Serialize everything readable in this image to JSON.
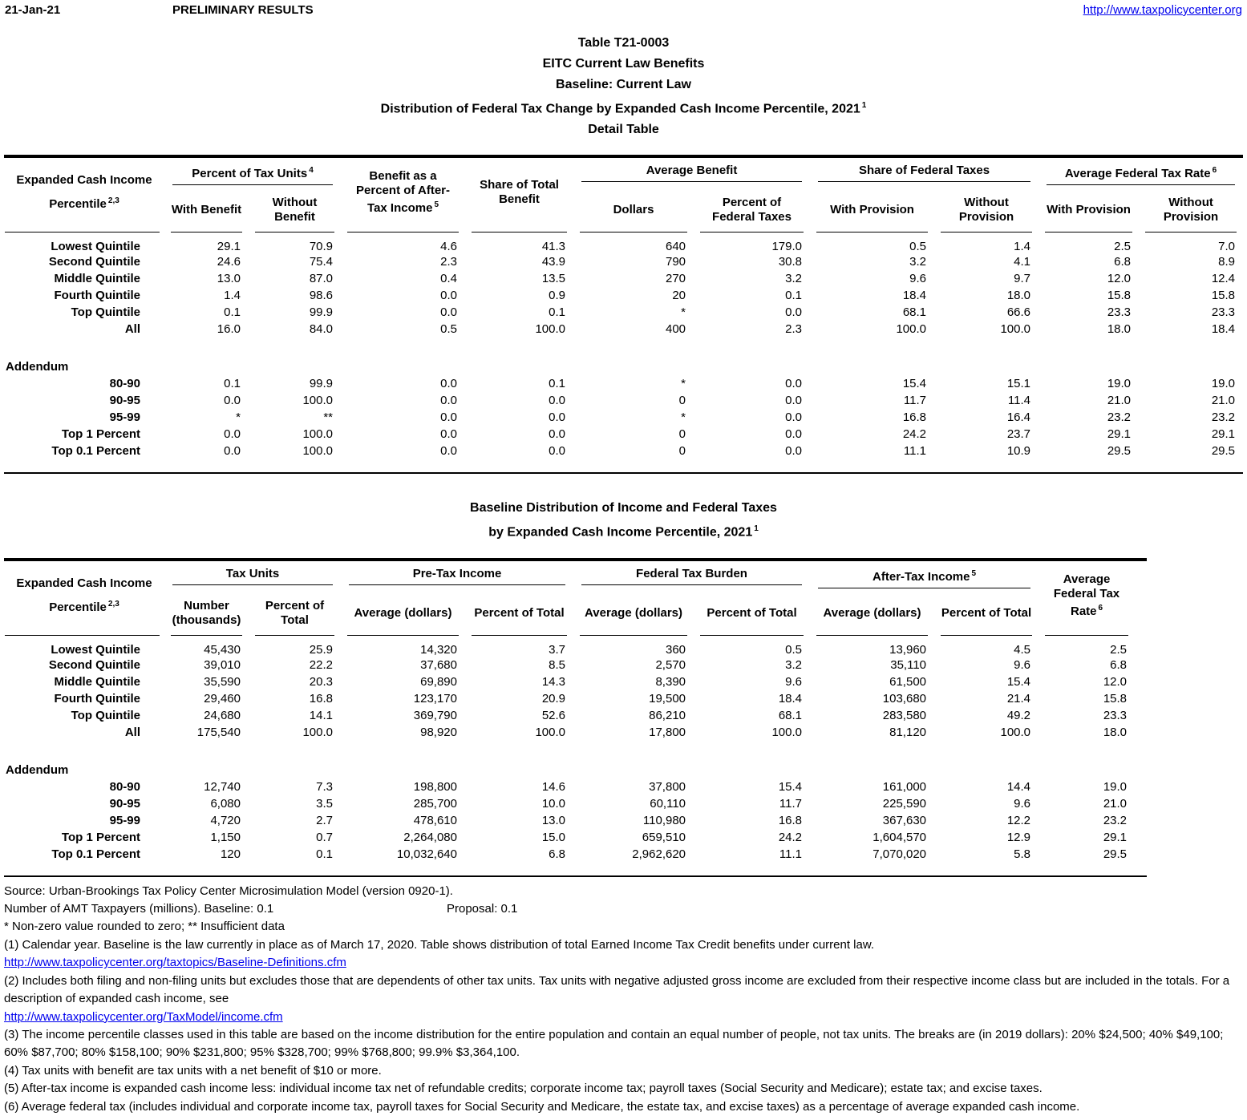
{
  "page_header": {
    "date": "21-Jan-21",
    "status": "PRELIMINARY RESULTS",
    "url": "http://www.taxpolicycenter.org"
  },
  "titles": {
    "line1": "Table T21-0003",
    "line2": "EITC Current Law Benefits",
    "line3": "Baseline: Current Law",
    "line4": "Distribution of Federal Tax Change by Expanded Cash Income Percentile, 2021",
    "line4_sup": "1",
    "line5": "Detail Table"
  },
  "table1": {
    "stub": {
      "line1": "Expanded Cash Income",
      "line2": "Percentile",
      "sup": "2,3"
    },
    "groups": {
      "pct_tax_units": {
        "label": "Percent of Tax Units",
        "sup": "4"
      },
      "benefit_pct_ati": {
        "label": "Benefit as a Percent of After-Tax Income",
        "sup": "5"
      },
      "share_total_benefit": {
        "label": "Share of Total Benefit"
      },
      "average_benefit": {
        "label": "Average Benefit"
      },
      "share_federal_taxes": {
        "label": "Share of Federal Taxes"
      },
      "avg_federal_tax_rate": {
        "label": "Average Federal Tax Rate",
        "sup": "6"
      }
    },
    "subheaders": {
      "with_benefit": "With Benefit",
      "without_benefit": "Without Benefit",
      "dollars": "Dollars",
      "pct_federal_taxes": "Percent of Federal Taxes",
      "with_provision": "With Provision",
      "without_provision": "Without Provision"
    },
    "rows": [
      {
        "label": "Lowest Quintile",
        "values": [
          "29.1",
          "70.9",
          "4.6",
          "41.3",
          "640",
          "179.0",
          "0.5",
          "1.4",
          "2.5",
          "7.0"
        ]
      },
      {
        "label": "Second Quintile",
        "values": [
          "24.6",
          "75.4",
          "2.3",
          "43.9",
          "790",
          "30.8",
          "3.2",
          "4.1",
          "6.8",
          "8.9"
        ]
      },
      {
        "label": "Middle Quintile",
        "values": [
          "13.0",
          "87.0",
          "0.4",
          "13.5",
          "270",
          "3.2",
          "9.6",
          "9.7",
          "12.0",
          "12.4"
        ]
      },
      {
        "label": "Fourth Quintile",
        "values": [
          "1.4",
          "98.6",
          "0.0",
          "0.9",
          "20",
          "0.1",
          "18.4",
          "18.0",
          "15.8",
          "15.8"
        ]
      },
      {
        "label": "Top Quintile",
        "values": [
          "0.1",
          "99.9",
          "0.0",
          "0.1",
          "*",
          "0.0",
          "68.1",
          "66.6",
          "23.3",
          "23.3"
        ]
      },
      {
        "label": "All",
        "values": [
          "16.0",
          "84.0",
          "0.5",
          "100.0",
          "400",
          "2.3",
          "100.0",
          "100.0",
          "18.0",
          "18.4"
        ]
      }
    ],
    "addendum_label": "Addendum",
    "addendum_rows": [
      {
        "label": "80-90",
        "values": [
          "0.1",
          "99.9",
          "0.0",
          "0.1",
          "*",
          "0.0",
          "15.4",
          "15.1",
          "19.0",
          "19.0"
        ]
      },
      {
        "label": "90-95",
        "values": [
          "0.0",
          "100.0",
          "0.0",
          "0.0",
          "0",
          "0.0",
          "11.7",
          "11.4",
          "21.0",
          "21.0"
        ]
      },
      {
        "label": "95-99",
        "values": [
          "*",
          "**",
          "0.0",
          "0.0",
          "*",
          "0.0",
          "16.8",
          "16.4",
          "23.2",
          "23.2"
        ]
      },
      {
        "label": "Top 1 Percent",
        "values": [
          "0.0",
          "100.0",
          "0.0",
          "0.0",
          "0",
          "0.0",
          "24.2",
          "23.7",
          "29.1",
          "29.1"
        ]
      },
      {
        "label": "Top 0.1 Percent",
        "values": [
          "0.0",
          "100.0",
          "0.0",
          "0.0",
          "0",
          "0.0",
          "11.1",
          "10.9",
          "29.5",
          "29.5"
        ]
      }
    ]
  },
  "table2": {
    "title_line1": "Baseline Distribution of Income and Federal Taxes",
    "title_line2": "by Expanded Cash Income Percentile, 2021",
    "title_sup": "1",
    "stub": {
      "line1": "Expanded Cash Income",
      "line2": "Percentile",
      "sup": "2,3"
    },
    "groups": {
      "tax_units": {
        "label": "Tax Units"
      },
      "pre_tax_income": {
        "label": "Pre-Tax Income"
      },
      "federal_tax_burden": {
        "label": "Federal Tax Burden"
      },
      "after_tax_income": {
        "label": "After-Tax Income",
        "sup": "5"
      },
      "avg_federal_tax_rate": {
        "label": "Average Federal Tax Rate",
        "sup": "6"
      }
    },
    "subheaders": {
      "number_thousands": "Number (thousands)",
      "percent_of_total": "Percent of Total",
      "average_dollars": "Average (dollars)"
    },
    "rows": [
      {
        "label": "Lowest Quintile",
        "values": [
          "45,430",
          "25.9",
          "14,320",
          "3.7",
          "360",
          "0.5",
          "13,960",
          "4.5",
          "2.5"
        ]
      },
      {
        "label": "Second Quintile",
        "values": [
          "39,010",
          "22.2",
          "37,680",
          "8.5",
          "2,570",
          "3.2",
          "35,110",
          "9.6",
          "6.8"
        ]
      },
      {
        "label": "Middle Quintile",
        "values": [
          "35,590",
          "20.3",
          "69,890",
          "14.3",
          "8,390",
          "9.6",
          "61,500",
          "15.4",
          "12.0"
        ]
      },
      {
        "label": "Fourth Quintile",
        "values": [
          "29,460",
          "16.8",
          "123,170",
          "20.9",
          "19,500",
          "18.4",
          "103,680",
          "21.4",
          "15.8"
        ]
      },
      {
        "label": "Top Quintile",
        "values": [
          "24,680",
          "14.1",
          "369,790",
          "52.6",
          "86,210",
          "68.1",
          "283,580",
          "49.2",
          "23.3"
        ]
      },
      {
        "label": "All",
        "values": [
          "175,540",
          "100.0",
          "98,920",
          "100.0",
          "17,800",
          "100.0",
          "81,120",
          "100.0",
          "18.0"
        ]
      }
    ],
    "addendum_label": "Addendum",
    "addendum_rows": [
      {
        "label": "80-90",
        "values": [
          "12,740",
          "7.3",
          "198,800",
          "14.6",
          "37,800",
          "15.4",
          "161,000",
          "14.4",
          "19.0"
        ]
      },
      {
        "label": "90-95",
        "values": [
          "6,080",
          "3.5",
          "285,700",
          "10.0",
          "60,110",
          "11.7",
          "225,590",
          "9.6",
          "21.0"
        ]
      },
      {
        "label": "95-99",
        "values": [
          "4,720",
          "2.7",
          "478,610",
          "13.0",
          "110,980",
          "16.8",
          "367,630",
          "12.2",
          "23.2"
        ]
      },
      {
        "label": "Top 1 Percent",
        "values": [
          "1,150",
          "0.7",
          "2,264,080",
          "15.0",
          "659,510",
          "24.2",
          "1,604,570",
          "12.9",
          "29.1"
        ]
      },
      {
        "label": "Top 0.1 Percent",
        "values": [
          "120",
          "0.1",
          "10,032,640",
          "6.8",
          "2,962,620",
          "11.1",
          "7,070,020",
          "5.8",
          "29.5"
        ]
      }
    ]
  },
  "footnotes": {
    "source": "Source: Urban-Brookings Tax Policy Center Microsimulation Model (version 0920-1).",
    "amt_left": "Number of AMT Taxpayers (millions).  Baseline: 0.1",
    "amt_right": "Proposal: 0.1",
    "stars": "* Non-zero value rounded to zero; ** Insufficient data",
    "fn1": "(1) Calendar year. Baseline is the law currently in place as of March 17, 2020. Table shows distribution of total Earned Income Tax Credit benefits under current law.",
    "link1": "http://www.taxpolicycenter.org/taxtopics/Baseline-Definitions.cfm",
    "fn2": "(2) Includes both filing and non-filing units but excludes those that are dependents of other tax units. Tax units with negative adjusted gross income are excluded from their respective income class but are included in the totals. For a description of expanded cash income, see",
    "link2": "http://www.taxpolicycenter.org/TaxModel/income.cfm",
    "fn3": "(3) The income percentile classes used in this table are based on the income distribution for the entire population and contain an equal number of people, not tax units. The breaks are (in 2019 dollars): 20% $24,500; 40% $49,100; 60% $87,700; 80% $158,100; 90% $231,800; 95% $328,700; 99% $768,800; 99.9% $3,364,100.",
    "fn4": "(4) Tax units with benefit are tax units with a net benefit of $10 or more.",
    "fn5": "(5) After-tax income is expanded cash income less: individual income tax net of refundable credits; corporate income tax; payroll taxes (Social Security and Medicare); estate tax; and excise taxes.",
    "fn6": "(6) Average federal tax (includes individual and corporate income tax, payroll taxes for Social Security and Medicare, the estate tax, and excise taxes) as a percentage of average expanded cash income."
  }
}
